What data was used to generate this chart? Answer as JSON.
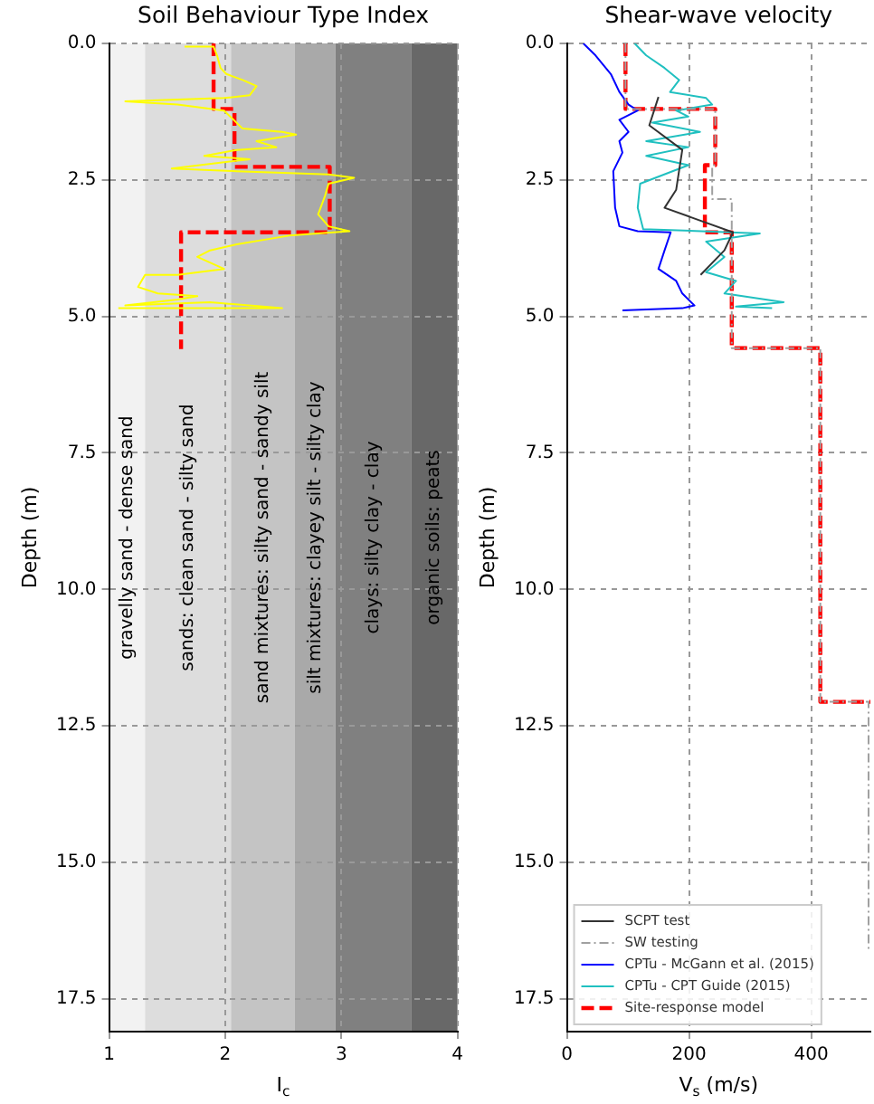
{
  "chart_data": [
    {
      "type": "line",
      "title": "Soil Behaviour Type Index",
      "xlabel": "I$_{c}$",
      "ylabel": "Depth (m)",
      "xlim": [
        1,
        4
      ],
      "ylim": [
        18.1,
        0
      ],
      "xticks": [
        1,
        2,
        3,
        4
      ],
      "yticks": [
        {
          "value": 0,
          "label": "0.0"
        },
        2.5,
        {
          "value": 5,
          "label": "5.0"
        },
        7.5,
        {
          "value": 10,
          "label": "10.0"
        },
        12.5,
        {
          "value": 15,
          "label": "15.0"
        },
        17.5
      ],
      "grid": true,
      "marker": "none",
      "legend": false,
      "bands": [
        {
          "axis": "x",
          "from": 1,
          "to": 1.31,
          "label": "gravelly sand - dense sand",
          "color": "#f2f2f2"
        },
        {
          "axis": "x",
          "from": 1.31,
          "to": 2.05,
          "label": "sands: clean sand - silty sand",
          "color": "#dddddd"
        },
        {
          "axis": "x",
          "from": 2.05,
          "to": 2.6,
          "label": "sand mixtures: silty sand - sandy silt",
          "color": "#c4c4c4"
        },
        {
          "axis": "x",
          "from": 2.6,
          "to": 2.95,
          "label": "silt mixtures: clayey silt - silty clay",
          "color": "#a9a9a9"
        },
        {
          "axis": "x",
          "from": 2.95,
          "to": 3.6,
          "label": "clays: silty clay - clay",
          "color": "#808080"
        },
        {
          "axis": "x",
          "from": 3.6,
          "to": 4,
          "label": "organic soils: peats",
          "color": "#686868"
        }
      ],
      "series": [
        {
          "type": "line",
          "color": "#ffff00",
          "line_style": "solid",
          "x": [
            1.65,
            1.9,
            1.93,
            1.96,
            2.01,
            2.15,
            2.27,
            2.21,
            1.99,
            1.14,
            1.59,
            1.99,
            2.15,
            2.49,
            2.61,
            2.27,
            2.44,
            2.1,
            1.82,
            2.21,
            1.54,
            2.1,
            2.89,
            3.11,
            2.89,
            2.86,
            2.8,
            2.89,
            3.07,
            2.55,
            2.1,
            1.87,
            1.76,
            1.99,
            1.59,
            1.31,
            1.25,
            1.42,
            1.76,
            1.59,
            1.14,
            1.87,
            2.49,
            1.08
          ],
          "values": [
            0.06,
            0.06,
            0.22,
            0.45,
            0.56,
            0.67,
            0.78,
            0.95,
            1.0,
            1.06,
            1.12,
            1.23,
            1.56,
            1.62,
            1.67,
            1.79,
            1.9,
            1.95,
            2.06,
            2.12,
            2.29,
            2.34,
            2.4,
            2.46,
            2.57,
            2.79,
            3.13,
            3.35,
            3.44,
            3.52,
            3.68,
            3.79,
            3.91,
            4.13,
            4.24,
            4.24,
            4.46,
            4.58,
            4.63,
            4.69,
            4.8,
            4.74,
            4.85,
            4.85
          ]
        },
        {
          "type": "line",
          "color": "#ff0000",
          "line_style": "dashed",
          "x": [
            1.9,
            1.9,
            2.08,
            2.08,
            2.9,
            2.9,
            1.62,
            1.62
          ],
          "values": [
            0,
            1.2,
            1.2,
            2.26,
            2.26,
            3.46,
            3.46,
            5.6
          ]
        }
      ]
    },
    {
      "type": "line",
      "title": "Shear-wave velocity",
      "xlabel": "V$_{s}$ (m/s)",
      "ylabel": "Depth (m)",
      "xlim": [
        0,
        497
      ],
      "ylim": [
        18.1,
        0
      ],
      "xticks": [
        0,
        200,
        400
      ],
      "yticks": [
        {
          "value": 0,
          "label": "0.0"
        },
        2.5,
        {
          "value": 5,
          "label": "5.0"
        },
        7.5,
        {
          "value": 10,
          "label": "10.0"
        },
        12.5,
        {
          "value": 15,
          "label": "15.0"
        },
        17.5
      ],
      "grid": true,
      "marker": "none",
      "legend": "bottom left",
      "series": [
        {
          "name": "SCPT test",
          "type": "line",
          "color": "#333333",
          "line_style": "solid",
          "x": [
            150,
            135,
            189,
            179,
            160,
            272,
            258,
            219
          ],
          "values": [
            0.98,
            1.5,
            1.95,
            2.68,
            3.01,
            3.46,
            3.79,
            4.24
          ]
        },
        {
          "name": "SW testing",
          "type": "line",
          "color": "#a0a0a0",
          "line_style": "dotted",
          "x": [
            96,
            96,
            243,
            243,
            238,
            238,
            270,
            270,
            415,
            415,
            494,
            494
          ],
          "values": [
            0,
            1.2,
            1.2,
            2.23,
            2.23,
            2.85,
            2.85,
            5.58,
            5.58,
            12.06,
            12.06,
            16.6
          ]
        },
        {
          "name": "CPTu - McGann et al. (2015)",
          "type": "line",
          "color": "#0000ff",
          "line_style": "solid",
          "x": [
            27,
            47,
            72,
            86,
            101,
            116,
            86,
            101,
            86,
            91,
            76,
            79,
            86,
            116,
            170,
            160,
            150,
            179,
            189,
            209,
            189,
            91
          ],
          "values": [
            0,
            0.22,
            0.56,
            0.89,
            1.12,
            1.23,
            1.4,
            1.62,
            1.79,
            2.0,
            2.34,
            3.01,
            3.35,
            3.44,
            3.46,
            3.79,
            4.13,
            4.35,
            4.58,
            4.8,
            4.85,
            4.89
          ]
        },
        {
          "name": "CPTu - CPT Guide (2015)",
          "type": "line",
          "color": "#20c0c0",
          "line_style": "solid",
          "x": [
            111,
            130,
            160,
            184,
            169,
            228,
            238,
            179,
            199,
            140,
            218,
            130,
            199,
            130,
            199,
            120,
            116,
            125,
            316,
            228,
            258,
            228,
            277,
            258,
            355,
            277,
            336
          ],
          "values": [
            0,
            0.22,
            0.45,
            0.67,
            0.89,
            1.0,
            1.12,
            1.23,
            1.34,
            1.45,
            1.62,
            1.79,
            1.9,
            2.06,
            2.23,
            2.57,
            3.01,
            3.4,
            3.48,
            3.63,
            3.91,
            4.19,
            4.35,
            4.58,
            4.74,
            4.82,
            4.85
          ]
        },
        {
          "name": "Site-response model",
          "type": "line",
          "color": "#ff0000",
          "line_style": "dashed",
          "x": [
            96,
            96,
            243,
            243,
            226,
            226,
            270,
            270,
            415,
            415,
            497
          ],
          "values": [
            0,
            1.2,
            1.2,
            2.23,
            2.23,
            3.46,
            3.46,
            5.58,
            5.58,
            12.06,
            12.06
          ]
        }
      ]
    }
  ]
}
